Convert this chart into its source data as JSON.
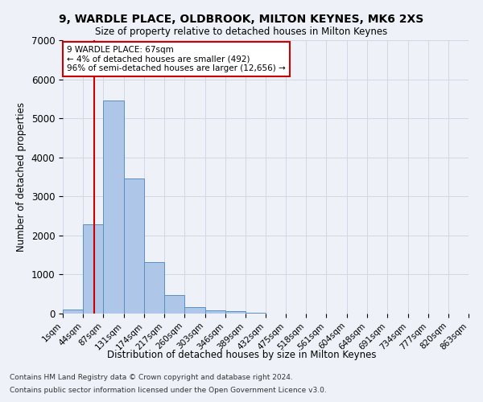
{
  "title1": "9, WARDLE PLACE, OLDBROOK, MILTON KEYNES, MK6 2XS",
  "title2": "Size of property relative to detached houses in Milton Keynes",
  "xlabel": "Distribution of detached houses by size in Milton Keynes",
  "ylabel": "Number of detached properties",
  "footer1": "Contains HM Land Registry data © Crown copyright and database right 2024.",
  "footer2": "Contains public sector information licensed under the Open Government Licence v3.0.",
  "bin_edges": [
    1,
    44,
    87,
    131,
    174,
    217,
    260,
    303,
    346,
    389,
    432,
    475,
    518,
    561,
    604,
    648,
    691,
    734,
    777,
    820,
    863
  ],
  "bar_values": [
    100,
    2280,
    5450,
    3450,
    1310,
    470,
    160,
    90,
    60,
    20,
    5,
    2,
    1,
    0,
    0,
    0,
    0,
    0,
    0,
    0
  ],
  "bar_color": "#aec6e8",
  "bar_edge_color": "#5a8fc2",
  "red_line_x": 67,
  "annotation_title": "9 WARDLE PLACE: 67sqm",
  "annotation_line1": "← 4% of detached houses are smaller (492)",
  "annotation_line2": "96% of semi-detached houses are larger (12,656) →",
  "annotation_box_color": "#ffffff",
  "annotation_border_color": "#cc0000",
  "red_line_color": "#cc0000",
  "grid_color": "#d0d8e8",
  "bg_color": "#eef2f8",
  "ylim": [
    0,
    7000
  ],
  "yticks": [
    0,
    1000,
    2000,
    3000,
    4000,
    5000,
    6000,
    7000
  ]
}
